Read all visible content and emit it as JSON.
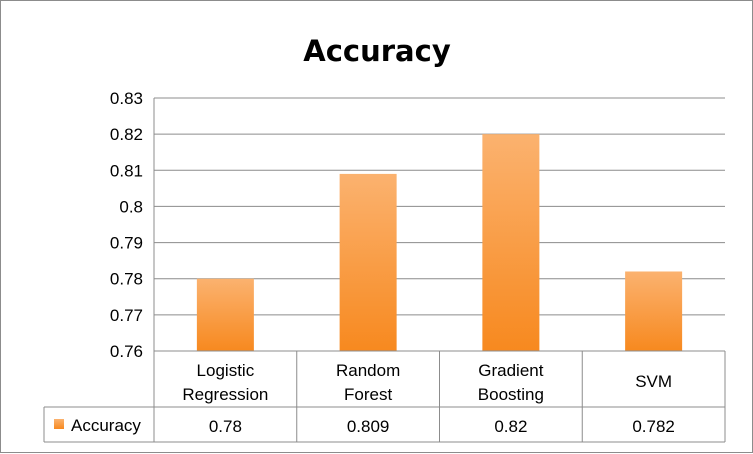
{
  "chart_data": {
    "type": "bar",
    "title": "Accuracy",
    "categories": [
      [
        "Logistic",
        "Regression"
      ],
      [
        "Random",
        "Forest"
      ],
      [
        "Gradient",
        "Boosting"
      ],
      [
        "SVM"
      ]
    ],
    "series": [
      {
        "name": "Accuracy",
        "values": [
          0.78,
          0.809,
          0.82,
          0.782
        ],
        "color": "#f79646"
      }
    ],
    "ylim": [
      0.76,
      0.83
    ],
    "yticks": [
      "0.76",
      "0.77",
      "0.78",
      "0.79",
      "0.8",
      "0.81",
      "0.82",
      "0.83"
    ],
    "table_values": [
      "0.78",
      "0.809",
      "0.82",
      "0.782"
    ],
    "grid": true,
    "legend": "data-table-left"
  }
}
